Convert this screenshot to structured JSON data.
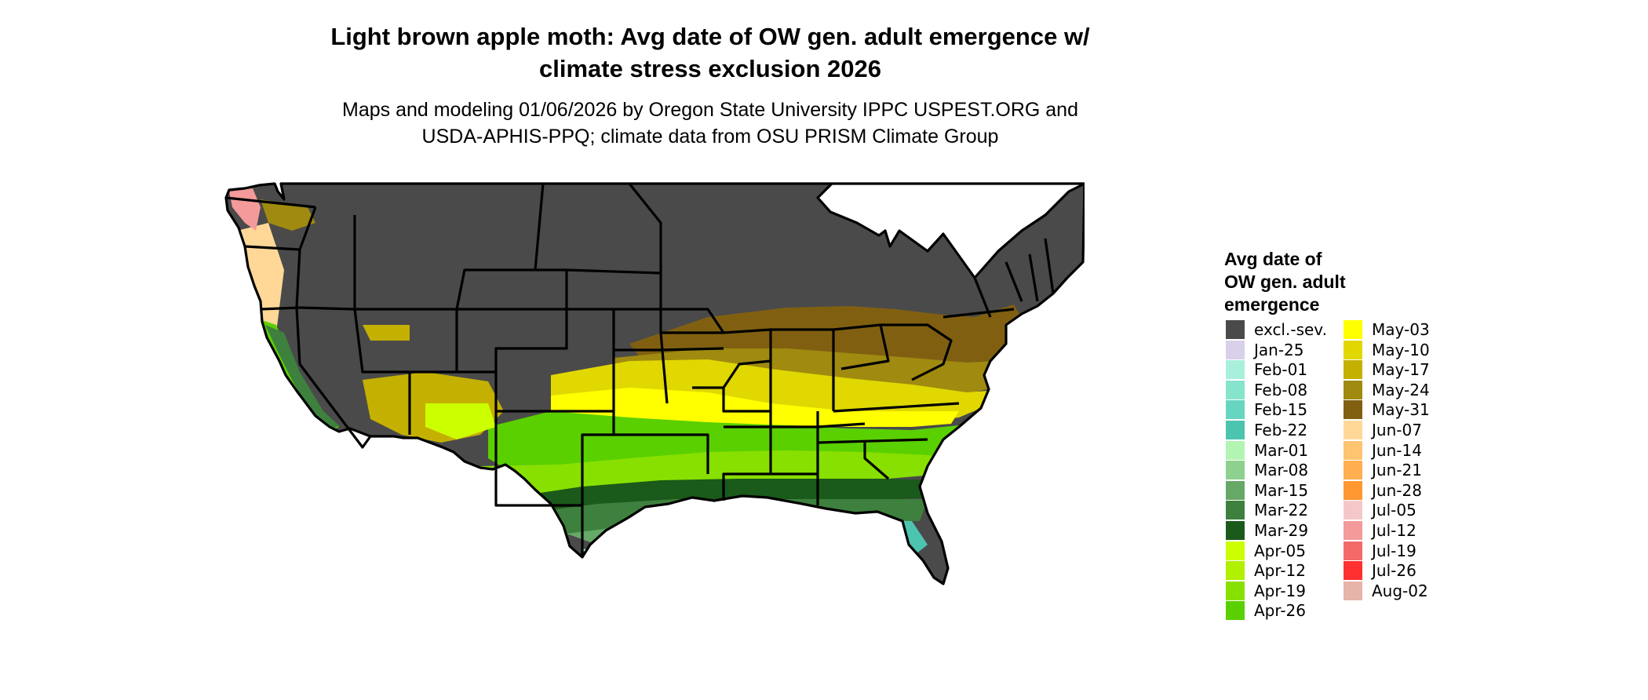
{
  "map": {
    "title_line1": "Light brown apple moth: Avg date of OW gen. adult emergence w/",
    "title_line2": "climate stress exclusion 2026",
    "subtitle_line1": "Maps and modeling 01/06/2026 by Oregon State University IPPC USPEST.ORG and",
    "subtitle_line2": "USDA-APHIS-PPQ; climate data from OSU PRISM Climate Group"
  },
  "legend": {
    "title_line1": "Avg date of",
    "title_line2": "OW gen. adult",
    "title_line3": "emergence",
    "items": [
      {
        "label": "excl.-sev.",
        "color": "#4a4a4a"
      },
      {
        "label": "Jan-25",
        "color": "#d9d0ea"
      },
      {
        "label": "Feb-01",
        "color": "#a8f0dc"
      },
      {
        "label": "Feb-08",
        "color": "#86e4cc"
      },
      {
        "label": "Feb-15",
        "color": "#66d6c0"
      },
      {
        "label": "Feb-22",
        "color": "#4cc4b0"
      },
      {
        "label": "Mar-01",
        "color": "#b2f5b2"
      },
      {
        "label": "Mar-08",
        "color": "#8ed08e"
      },
      {
        "label": "Mar-15",
        "color": "#66a866"
      },
      {
        "label": "Mar-22",
        "color": "#3e803e"
      },
      {
        "label": "Mar-29",
        "color": "#1a5a1a"
      },
      {
        "label": "Apr-05",
        "color": "#ccff00"
      },
      {
        "label": "Apr-12",
        "color": "#b0f000"
      },
      {
        "label": "Apr-19",
        "color": "#88e000"
      },
      {
        "label": "Apr-26",
        "color": "#5ad000"
      },
      {
        "label": "May-03",
        "color": "#ffff00"
      },
      {
        "label": "May-10",
        "color": "#e0d800"
      },
      {
        "label": "May-17",
        "color": "#c4b000"
      },
      {
        "label": "May-24",
        "color": "#a08a10"
      },
      {
        "label": "May-31",
        "color": "#806010"
      },
      {
        "label": "Jun-07",
        "color": "#ffd898"
      },
      {
        "label": "Jun-14",
        "color": "#ffc470"
      },
      {
        "label": "Jun-21",
        "color": "#ffae50"
      },
      {
        "label": "Jun-28",
        "color": "#ff9830"
      },
      {
        "label": "Jul-05",
        "color": "#f4c8c8"
      },
      {
        "label": "Jul-12",
        "color": "#f49a9a"
      },
      {
        "label": "Jul-19",
        "color": "#f46a6a"
      },
      {
        "label": "Jul-26",
        "color": "#ff3030"
      },
      {
        "label": "Aug-02",
        "color": "#e6b4a8"
      }
    ]
  }
}
